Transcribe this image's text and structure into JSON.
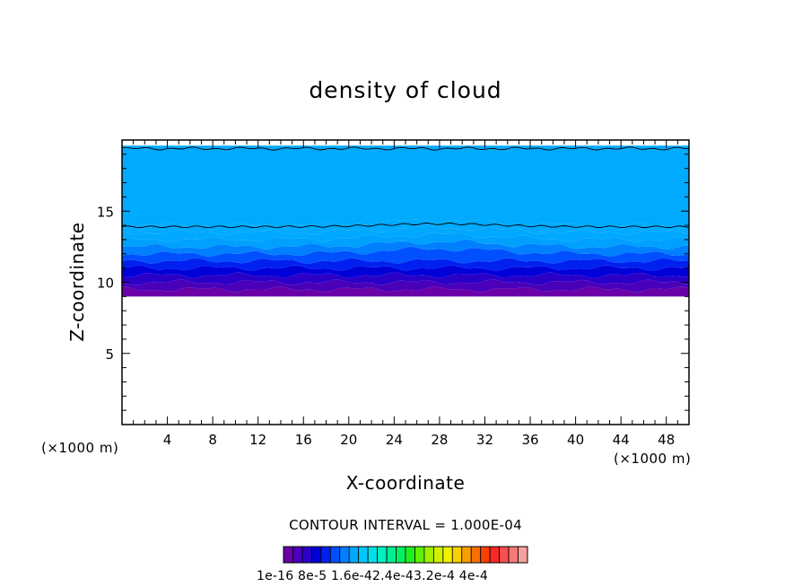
{
  "chart_data": {
    "type": "heatmap",
    "title": "density of cloud",
    "xlabel": "X-coordinate",
    "ylabel": "Z-coordinate",
    "x_unit": "(×1000 m)",
    "z_unit": "(×1000 m)",
    "xlim": [
      0,
      50
    ],
    "ylim": [
      0,
      20
    ],
    "xticks": [
      "4",
      "8",
      "12",
      "16",
      "20",
      "24",
      "28",
      "32",
      "36",
      "40",
      "44",
      "48"
    ],
    "yticks": [
      "5",
      "10",
      "15"
    ],
    "contour_interval_text": "CONTOUR INTERVAL = 1.000E-04",
    "colorbar_labels_text": "1e-16 8e-5 1.6e-42.4e-43.2e-4 4e-4",
    "colorbar_range": [
      1e-16,
      0.00044
    ],
    "colorbar_colors": [
      "#6a00a8",
      "#4a00b8",
      "#2a00c8",
      "#0000d8",
      "#0020f0",
      "#0050ff",
      "#0080ff",
      "#00a8ff",
      "#00c8ff",
      "#00e0e8",
      "#00f0c0",
      "#00f090",
      "#00f060",
      "#20f020",
      "#60f000",
      "#a0f000",
      "#d0f000",
      "#f0f000",
      "#f8d000",
      "#f8a000",
      "#f87000",
      "#f84000",
      "#f82828",
      "#f85050",
      "#f87878",
      "#f8a0a0"
    ],
    "profile": {
      "description_levels_z": [
        9.0,
        9.5,
        10.0,
        10.5,
        11.0,
        11.5,
        12.0,
        12.5,
        13.0,
        13.5,
        14.0,
        19.6
      ],
      "level_colors": [
        "#6a00a8",
        "#4a00b8",
        "#2a00c8",
        "#0000d8",
        "#0020f0",
        "#0050ff",
        "#0080ff",
        "#00a0ff",
        "#00a8ff",
        "#00aaff",
        "#00aaff"
      ]
    },
    "cloud_base_z": 9.0,
    "cloud_top_z": 19.6,
    "contour_lines_z": [
      13.9,
      19.4
    ]
  }
}
